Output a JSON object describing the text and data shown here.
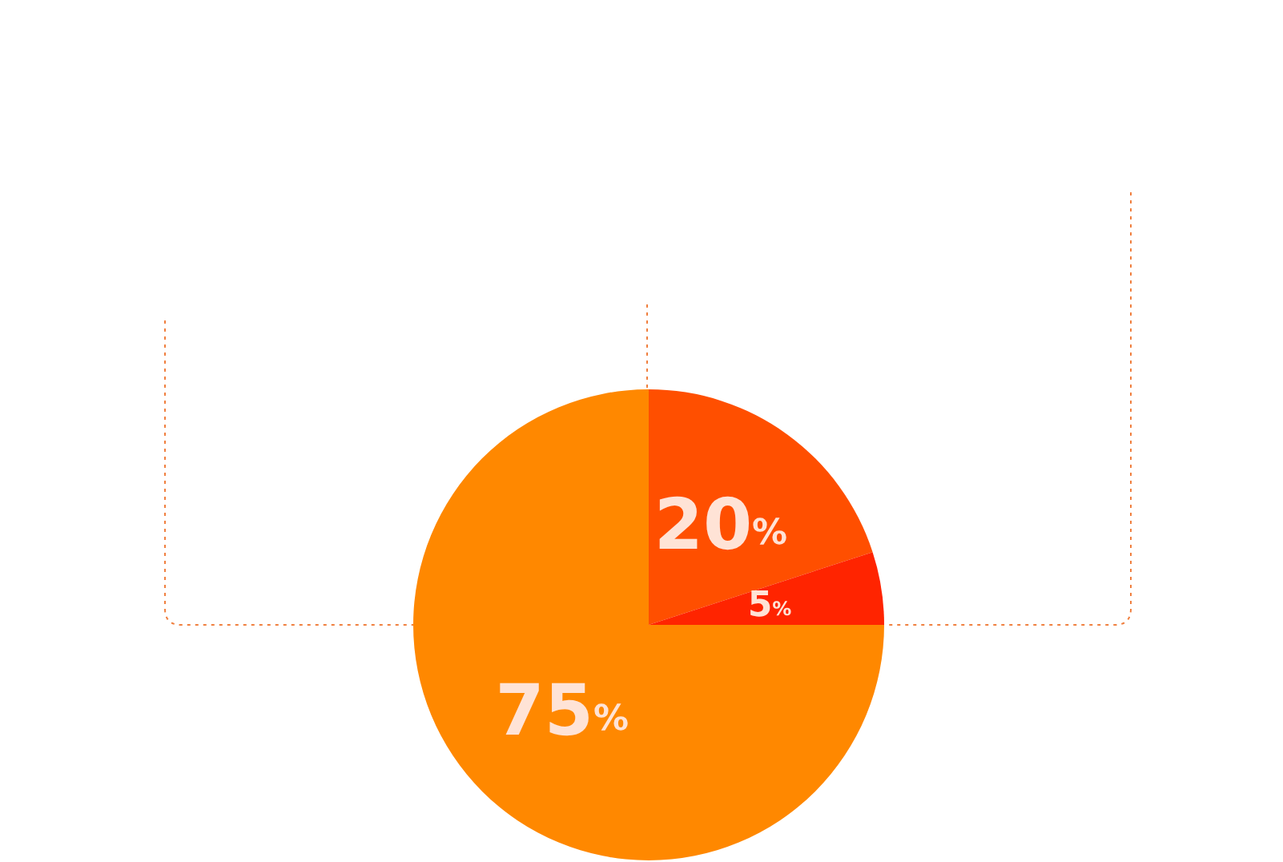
{
  "chart_data": {
    "type": "pie",
    "categories": [
      null,
      null,
      null
    ],
    "values": [
      20,
      5,
      75
    ],
    "colors": [
      "#ff4f00",
      "#ff2400",
      "#ff8800"
    ],
    "value_labels": [
      "20%",
      "5%",
      "75%"
    ]
  }
}
